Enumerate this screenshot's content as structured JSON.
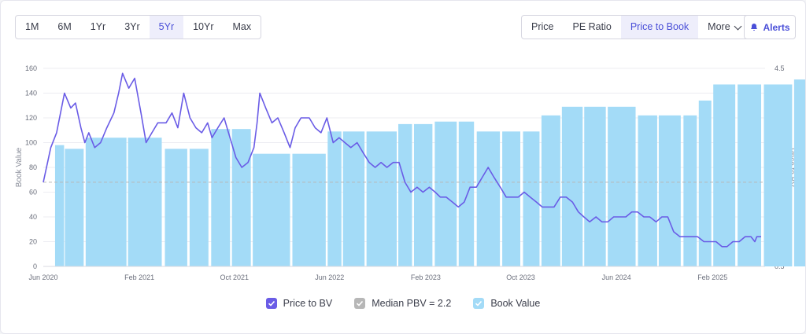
{
  "ranges": [
    "1M",
    "6M",
    "1Yr",
    "3Yr",
    "5Yr",
    "10Yr",
    "Max"
  ],
  "active_range": "5Yr",
  "metrics": [
    "Price",
    "PE Ratio",
    "Price to Book"
  ],
  "active_metric": "Price to Book",
  "more_label": "More",
  "alerts_label": "Alerts",
  "colors": {
    "accent": "#4a4fd8",
    "line": "#6a5ce6",
    "bar": "#a3dbf7",
    "median": "#b7b7b7"
  },
  "chart_data": {
    "type": "bar+line",
    "title": "",
    "y_left": {
      "label": "Book Value",
      "range": [
        0,
        160
      ],
      "ticks": [
        0,
        20,
        40,
        60,
        80,
        100,
        120,
        140,
        160
      ]
    },
    "y_right": {
      "label": "Price to BV",
      "range": [
        0.5,
        4.5
      ],
      "ticks": [
        "0.5",
        "1.0",
        "1.5",
        "2.0",
        "2.5",
        "3.0",
        "3.5",
        "4.0",
        "4.5"
      ]
    },
    "x_range": [
      "2020-06-01",
      "2025-06-15"
    ],
    "x_ticks": [
      {
        "date": "2020-06-01",
        "label": "Jun 2020"
      },
      {
        "date": "2021-02-01",
        "label": "Feb 2021"
      },
      {
        "date": "2021-10-01",
        "label": "Oct 2021"
      },
      {
        "date": "2022-06-01",
        "label": "Jun 2022"
      },
      {
        "date": "2023-02-01",
        "label": "Feb 2023"
      },
      {
        "date": "2023-10-01",
        "label": "Oct 2023"
      },
      {
        "date": "2024-06-01",
        "label": "Jun 2024"
      },
      {
        "date": "2025-02-01",
        "label": "Feb 2025"
      }
    ],
    "median_pbv": 2.2,
    "book_value": [
      {
        "start": "2020-07-01",
        "end": "2020-07-24",
        "value": 98
      },
      {
        "start": "2020-07-26",
        "end": "2020-09-12",
        "value": 95
      },
      {
        "start": "2020-09-17",
        "end": "2020-12-30",
        "value": 104
      },
      {
        "start": "2021-01-03",
        "end": "2021-03-30",
        "value": 104
      },
      {
        "start": "2021-04-07",
        "end": "2021-06-03",
        "value": 95
      },
      {
        "start": "2021-06-09",
        "end": "2021-07-27",
        "value": 95
      },
      {
        "start": "2021-08-03",
        "end": "2021-09-20",
        "value": 111
      },
      {
        "start": "2021-09-25",
        "end": "2021-11-12",
        "value": 111
      },
      {
        "start": "2021-11-17",
        "end": "2022-02-20",
        "value": 91
      },
      {
        "start": "2022-02-26",
        "end": "2022-05-22",
        "value": 91
      },
      {
        "start": "2022-05-27",
        "end": "2022-07-01",
        "value": 109
      },
      {
        "start": "2022-07-05",
        "end": "2022-08-29",
        "value": 109
      },
      {
        "start": "2022-09-03",
        "end": "2022-11-19",
        "value": 109
      },
      {
        "start": "2022-11-23",
        "end": "2022-12-28",
        "value": 115
      },
      {
        "start": "2023-01-02",
        "end": "2023-02-18",
        "value": 115
      },
      {
        "start": "2023-02-24",
        "end": "2023-04-21",
        "value": 117
      },
      {
        "start": "2023-04-26",
        "end": "2023-06-04",
        "value": 117
      },
      {
        "start": "2023-06-11",
        "end": "2023-08-09",
        "value": 109
      },
      {
        "start": "2023-08-15",
        "end": "2023-09-30",
        "value": 109
      },
      {
        "start": "2023-10-07",
        "end": "2023-11-18",
        "value": 109
      },
      {
        "start": "2023-11-23",
        "end": "2024-01-10",
        "value": 122
      },
      {
        "start": "2024-01-14",
        "end": "2024-03-07",
        "value": 129
      },
      {
        "start": "2024-03-11",
        "end": "2024-05-05",
        "value": 129
      },
      {
        "start": "2024-05-10",
        "end": "2024-07-20",
        "value": 129
      },
      {
        "start": "2024-07-26",
        "end": "2024-09-13",
        "value": 122
      },
      {
        "start": "2024-09-17",
        "end": "2024-11-12",
        "value": 122
      },
      {
        "start": "2024-11-19",
        "end": "2024-12-23",
        "value": 122
      },
      {
        "start": "2024-12-28",
        "end": "2025-01-29",
        "value": 134
      },
      {
        "start": "2025-02-03",
        "end": "2025-03-31",
        "value": 147
      },
      {
        "start": "2025-04-06",
        "end": "2025-06-05",
        "value": 147
      },
      {
        "start": "2025-06-12",
        "end": "2025-08-23",
        "value": 147
      },
      {
        "start": "2025-08-28",
        "end": "2025-10-05",
        "value": 151
      },
      {
        "start": "2025-10-09",
        "end": "2025-11-04",
        "value": 151
      }
    ],
    "price_to_bv": [
      [
        "2020-06-01",
        2.2
      ],
      [
        "2020-06-20",
        2.9
      ],
      [
        "2020-07-05",
        3.2
      ],
      [
        "2020-07-15",
        3.6
      ],
      [
        "2020-07-25",
        4.0
      ],
      [
        "2020-08-10",
        3.7
      ],
      [
        "2020-08-22",
        3.8
      ],
      [
        "2020-09-05",
        3.3
      ],
      [
        "2020-09-15",
        3.0
      ],
      [
        "2020-09-25",
        3.2
      ],
      [
        "2020-10-10",
        2.9
      ],
      [
        "2020-10-25",
        3.0
      ],
      [
        "2020-11-10",
        3.3
      ],
      [
        "2020-11-28",
        3.6
      ],
      [
        "2020-12-10",
        4.0
      ],
      [
        "2020-12-20",
        4.4
      ],
      [
        "2021-01-05",
        4.1
      ],
      [
        "2021-01-20",
        4.3
      ],
      [
        "2021-02-05",
        3.6
      ],
      [
        "2021-02-18",
        3.0
      ],
      [
        "2021-03-05",
        3.2
      ],
      [
        "2021-03-20",
        3.4
      ],
      [
        "2021-04-10",
        3.4
      ],
      [
        "2021-04-25",
        3.6
      ],
      [
        "2021-05-10",
        3.3
      ],
      [
        "2021-05-25",
        4.0
      ],
      [
        "2021-06-10",
        3.5
      ],
      [
        "2021-06-25",
        3.3
      ],
      [
        "2021-07-10",
        3.2
      ],
      [
        "2021-07-25",
        3.4
      ],
      [
        "2021-08-05",
        3.1
      ],
      [
        "2021-08-20",
        3.3
      ],
      [
        "2021-09-05",
        3.5
      ],
      [
        "2021-09-20",
        3.1
      ],
      [
        "2021-10-05",
        2.7
      ],
      [
        "2021-10-20",
        2.5
      ],
      [
        "2021-11-05",
        2.6
      ],
      [
        "2021-11-20",
        2.9
      ],
      [
        "2021-11-28",
        3.4
      ],
      [
        "2021-12-05",
        4.0
      ],
      [
        "2021-12-20",
        3.7
      ],
      [
        "2022-01-05",
        3.4
      ],
      [
        "2022-01-20",
        3.5
      ],
      [
        "2022-02-05",
        3.2
      ],
      [
        "2022-02-20",
        2.9
      ],
      [
        "2022-03-05",
        3.3
      ],
      [
        "2022-03-20",
        3.5
      ],
      [
        "2022-04-10",
        3.5
      ],
      [
        "2022-04-25",
        3.3
      ],
      [
        "2022-05-10",
        3.2
      ],
      [
        "2022-05-25",
        3.5
      ],
      [
        "2022-06-10",
        3.0
      ],
      [
        "2022-06-25",
        3.1
      ],
      [
        "2022-07-10",
        3.0
      ],
      [
        "2022-07-25",
        2.9
      ],
      [
        "2022-08-10",
        3.0
      ],
      [
        "2022-08-25",
        2.8
      ],
      [
        "2022-09-10",
        2.6
      ],
      [
        "2022-09-25",
        2.5
      ],
      [
        "2022-10-10",
        2.6
      ],
      [
        "2022-10-25",
        2.5
      ],
      [
        "2022-11-10",
        2.6
      ],
      [
        "2022-11-25",
        2.6
      ],
      [
        "2022-12-10",
        2.2
      ],
      [
        "2022-12-25",
        2.0
      ],
      [
        "2023-01-10",
        2.1
      ],
      [
        "2023-01-25",
        2.0
      ],
      [
        "2023-02-10",
        2.1
      ],
      [
        "2023-02-25",
        2.0
      ],
      [
        "2023-03-10",
        1.9
      ],
      [
        "2023-03-25",
        1.9
      ],
      [
        "2023-04-10",
        1.8
      ],
      [
        "2023-04-25",
        1.7
      ],
      [
        "2023-05-10",
        1.8
      ],
      [
        "2023-05-25",
        2.1
      ],
      [
        "2023-06-10",
        2.1
      ],
      [
        "2023-06-25",
        2.3
      ],
      [
        "2023-07-10",
        2.5
      ],
      [
        "2023-07-25",
        2.3
      ],
      [
        "2023-08-10",
        2.1
      ],
      [
        "2023-08-25",
        1.9
      ],
      [
        "2023-09-10",
        1.9
      ],
      [
        "2023-09-25",
        1.9
      ],
      [
        "2023-10-10",
        2.0
      ],
      [
        "2023-10-25",
        1.9
      ],
      [
        "2023-11-10",
        1.8
      ],
      [
        "2023-11-25",
        1.7
      ],
      [
        "2023-12-10",
        1.7
      ],
      [
        "2023-12-25",
        1.7
      ],
      [
        "2024-01-10",
        1.9
      ],
      [
        "2024-01-25",
        1.9
      ],
      [
        "2024-02-10",
        1.8
      ],
      [
        "2024-02-25",
        1.6
      ],
      [
        "2024-03-10",
        1.5
      ],
      [
        "2024-03-25",
        1.4
      ],
      [
        "2024-04-10",
        1.5
      ],
      [
        "2024-04-25",
        1.4
      ],
      [
        "2024-05-10",
        1.4
      ],
      [
        "2024-05-25",
        1.5
      ],
      [
        "2024-06-10",
        1.5
      ],
      [
        "2024-06-25",
        1.5
      ],
      [
        "2024-07-10",
        1.6
      ],
      [
        "2024-07-25",
        1.6
      ],
      [
        "2024-08-10",
        1.5
      ],
      [
        "2024-08-25",
        1.5
      ],
      [
        "2024-09-10",
        1.4
      ],
      [
        "2024-09-25",
        1.5
      ],
      [
        "2024-10-10",
        1.5
      ],
      [
        "2024-10-25",
        1.2
      ],
      [
        "2024-11-10",
        1.1
      ],
      [
        "2024-11-25",
        1.1
      ],
      [
        "2024-12-10",
        1.1
      ],
      [
        "2024-12-25",
        1.1
      ],
      [
        "2025-01-10",
        1.0
      ],
      [
        "2025-01-25",
        1.0
      ],
      [
        "2025-02-10",
        1.0
      ],
      [
        "2025-02-25",
        0.9
      ],
      [
        "2025-03-10",
        0.9
      ],
      [
        "2025-03-25",
        1.0
      ],
      [
        "2025-04-10",
        1.0
      ],
      [
        "2025-04-25",
        1.1
      ],
      [
        "2025-05-10",
        1.1
      ],
      [
        "2025-05-20",
        1.0
      ],
      [
        "2025-05-25",
        1.1
      ],
      [
        "2025-06-05",
        1.1
      ]
    ],
    "legend": [
      "Price to BV",
      "Median PBV = 2.2",
      "Book Value"
    ],
    "legend_position": "bottom"
  }
}
